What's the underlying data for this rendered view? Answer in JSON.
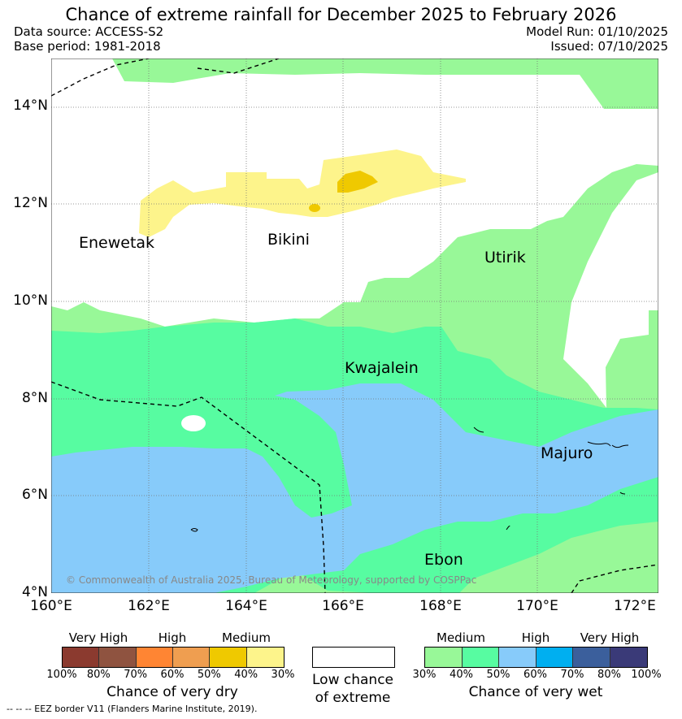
{
  "title": "Chance of extreme rainfall for December 2025 to February 2026",
  "meta": {
    "data_source": "Data source: ACCESS-S2",
    "base_period": "Base period: 1981-2018",
    "model_run": "Model Run: 01/10/2025",
    "issued": "Issued: 07/10/2025"
  },
  "map": {
    "lat_labels": [
      "14°N",
      "12°N",
      "10°N",
      "8°N",
      "6°N",
      "4°N"
    ],
    "lon_labels": [
      "160°E",
      "162°E",
      "164°E",
      "166°E",
      "168°E",
      "170°E",
      "172°E"
    ],
    "places": [
      "Enewetak",
      "Bikini",
      "Utirik",
      "Kwajalein",
      "Majuro",
      "Ebon"
    ],
    "copyright": "© Commonwealth of Australia 2025, Bureau of Meteorology, supported by COSPPac",
    "colors": {
      "wet_medium": "#98f898",
      "wet_high_low": "#57fca1",
      "wet_high": "#87cbfa",
      "dry_medium_light": "#fdf48b",
      "dry_medium": "#efc900"
    }
  },
  "legend": {
    "dry": {
      "categories": [
        "Very High",
        "High",
        "Medium"
      ],
      "ticks": [
        "100%",
        "80%",
        "70%",
        "60%",
        "50%",
        "40%",
        "30%"
      ],
      "colors": [
        "#8b3a2f",
        "#8f5340",
        "#ff8533",
        "#ef9e50",
        "#efc900",
        "#fdf48b"
      ],
      "title": "Chance of very dry"
    },
    "low": {
      "line1": "Low chance",
      "line2": "of extreme"
    },
    "wet": {
      "categories": [
        "Medium",
        "High",
        "Very High"
      ],
      "ticks": [
        "30%",
        "40%",
        "50%",
        "60%",
        "70%",
        "80%",
        "100%"
      ],
      "colors": [
        "#98f898",
        "#57fca1",
        "#87cbfa",
        "#00aff0",
        "#3b5f9c",
        "#3a3a78"
      ],
      "title": "Chance of very wet"
    }
  },
  "footer": "--  --  -- EEZ border V11 (Flanders Marine Institute, 2019)."
}
